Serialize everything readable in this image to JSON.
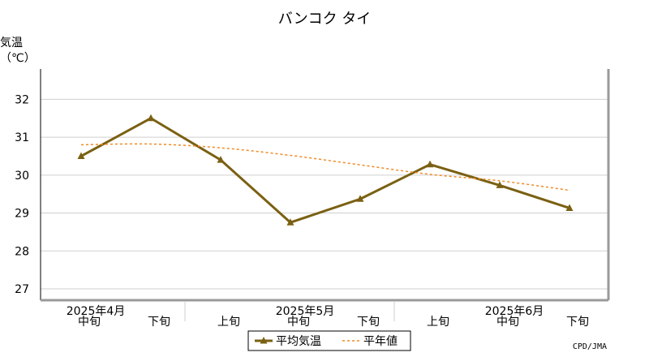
{
  "chart_data": {
    "type": "line",
    "title": "バンコク タイ",
    "ylabel": "気温",
    "yunit": "（℃）",
    "ylim": [
      26.7,
      32.8
    ],
    "yticks": [
      27,
      28,
      29,
      30,
      31,
      32
    ],
    "grid": true,
    "categories": [
      "中旬",
      "下旬",
      "上旬",
      "中旬",
      "下旬",
      "上旬",
      "中旬",
      "下旬"
    ],
    "month_labels": [
      {
        "label": "2025年4月",
        "index": 0
      },
      {
        "label": "2025年5月",
        "index": 3
      },
      {
        "label": "2025年6月",
        "index": 6
      }
    ],
    "series": [
      {
        "name": "平均気温",
        "style": "solid-triangle",
        "color": "#7a6012",
        "values": [
          30.5,
          31.5,
          30.4,
          28.75,
          29.37,
          30.28,
          29.73,
          29.13
        ]
      },
      {
        "name": "平年値",
        "style": "dashed",
        "color": "#f08a24",
        "values": [
          30.8,
          30.82,
          30.72,
          30.52,
          30.27,
          30.02,
          29.85,
          29.6
        ]
      }
    ],
    "legend_position": "bottom-center",
    "credit": "CPD/JMA"
  }
}
